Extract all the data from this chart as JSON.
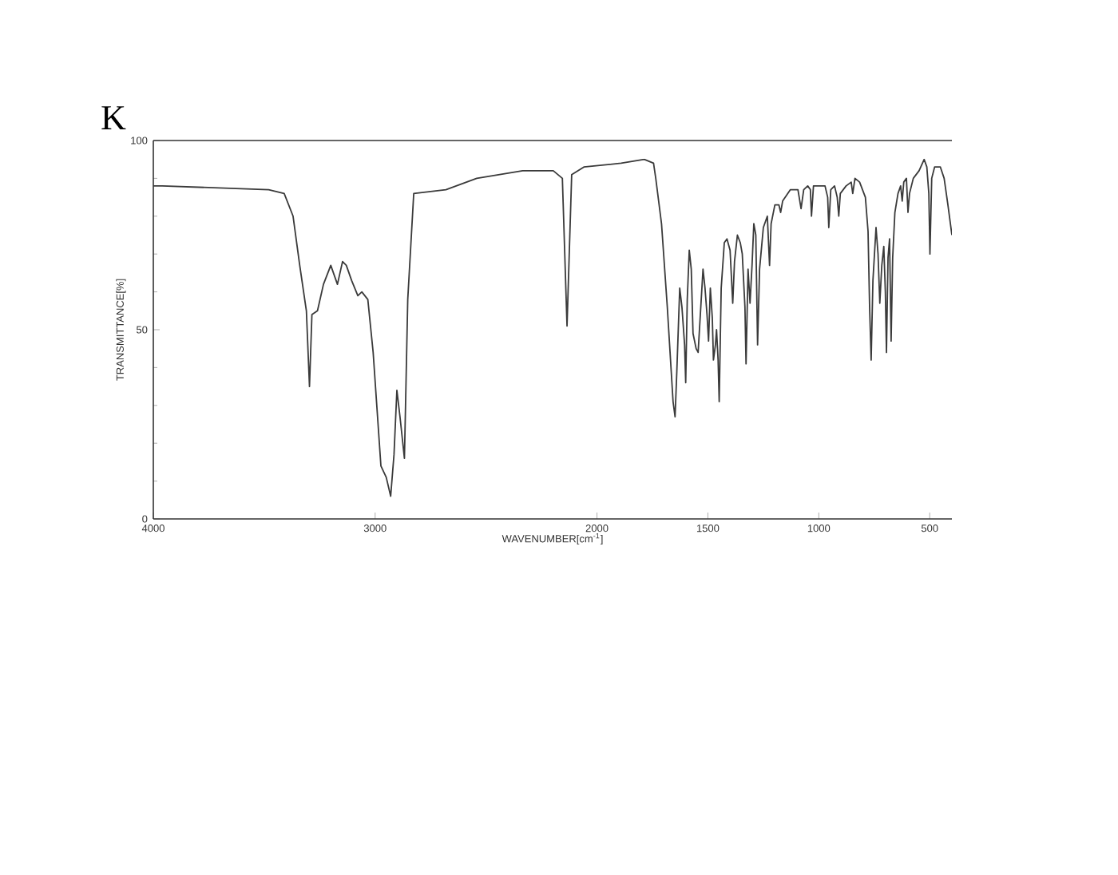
{
  "chart_data": {
    "type": "line",
    "title": "K",
    "xlabel": "WAVENUMBER[cm$^{-1}$]",
    "ylabel": "TRANSMITTANCE[%]",
    "xlim": [
      4000,
      400
    ],
    "ylim": [
      0,
      100
    ],
    "xticks": [
      4000,
      3000,
      2000,
      1500,
      1000,
      500
    ],
    "yticks": [
      0,
      50,
      100
    ],
    "color": "#3a3a3a",
    "x": [
      4000,
      3960,
      3480,
      3410,
      3370,
      3340,
      3310,
      3296,
      3285,
      3260,
      3233,
      3200,
      3170,
      3147,
      3130,
      3106,
      3078,
      3060,
      3033,
      3009,
      2974,
      2950,
      2930,
      2915,
      2902,
      2888,
      2868,
      2853,
      2826,
      2681,
      2542,
      2335,
      2197,
      2156,
      2135,
      2114,
      2059,
      1891,
      1787,
      1745,
      1735,
      1709,
      1683,
      1657,
      1648,
      1640,
      1627,
      1617,
      1605,
      1600,
      1593,
      1584,
      1575,
      1567,
      1553,
      1544,
      1532,
      1522,
      1513,
      1504,
      1497,
      1489,
      1480,
      1475,
      1466,
      1461,
      1454,
      1449,
      1440,
      1426,
      1414,
      1400,
      1388,
      1380,
      1367,
      1354,
      1345,
      1333,
      1328,
      1319,
      1310,
      1301,
      1293,
      1284,
      1276,
      1267,
      1250,
      1232,
      1222,
      1215,
      1198,
      1180,
      1172,
      1163,
      1128,
      1094,
      1080,
      1068,
      1050,
      1038,
      1033,
      1024,
      972,
      960,
      955,
      946,
      929,
      917,
      910,
      903,
      877,
      854,
      847,
      837,
      816,
      790,
      778,
      771,
      764,
      756,
      742,
      733,
      725,
      716,
      707,
      700,
      695,
      688,
      681,
      674,
      667,
      657,
      643,
      631,
      624,
      617,
      605,
      598,
      591,
      574,
      548,
      525,
      513,
      504,
      499,
      491,
      478,
      452,
      435,
      418,
      400
    ],
    "values": [
      88,
      88,
      87,
      86,
      80,
      67,
      55,
      35,
      54,
      55,
      62,
      67,
      62,
      68,
      67,
      63,
      59,
      60,
      58,
      44,
      14,
      11,
      6,
      17,
      34,
      27,
      16,
      58,
      86,
      87,
      90,
      92,
      92,
      90,
      51,
      91,
      93,
      94,
      95,
      94,
      90,
      78,
      56,
      31,
      27,
      39,
      61,
      56,
      46,
      36,
      58,
      71,
      66,
      49,
      45,
      44,
      56,
      66,
      61,
      54,
      47,
      61,
      53,
      42,
      46,
      50,
      42,
      31,
      61,
      73,
      74,
      71,
      57,
      68,
      75,
      73,
      70,
      56,
      41,
      66,
      57,
      67,
      78,
      75,
      46,
      66,
      77,
      80,
      67,
      78,
      83,
      83,
      81,
      84,
      87,
      87,
      82,
      87,
      88,
      87,
      80,
      88,
      88,
      85,
      77,
      87,
      88,
      85,
      80,
      86,
      88,
      89,
      86,
      90,
      89,
      85,
      76,
      56,
      42,
      63,
      77,
      70,
      57,
      67,
      72,
      60,
      44,
      69,
      74,
      47,
      69,
      81,
      86,
      88,
      84,
      89,
      90,
      81,
      86,
      90,
      92,
      95,
      93,
      86,
      70,
      90,
      93,
      93,
      90,
      83,
      75
    ]
  }
}
